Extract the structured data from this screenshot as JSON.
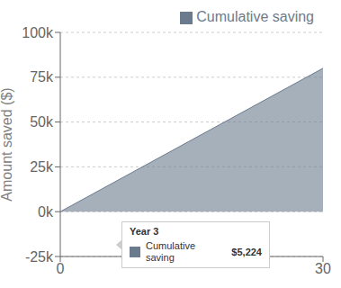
{
  "chart_data": {
    "type": "area",
    "y_label": "Amount saved ($)",
    "x": [
      0,
      30
    ],
    "series": [
      {
        "name": "Cumulative saving",
        "color": "#6b7b8d",
        "values": [
          0,
          80000
        ]
      }
    ],
    "xlim": [
      0,
      30
    ],
    "ylim": [
      -25000,
      100000
    ],
    "xticks": [
      0,
      30
    ],
    "yticks": [
      {
        "value": -25000,
        "label": "-25k"
      },
      {
        "value": 0,
        "label": "0k"
      },
      {
        "value": 25000,
        "label": "25k"
      },
      {
        "value": 50000,
        "label": "50k"
      },
      {
        "value": 75000,
        "label": "75k"
      },
      {
        "value": 100000,
        "label": "100k"
      }
    ],
    "grid": true,
    "legend": "upper right",
    "annotations": [
      "Year 3",
      "Cumulative\nsaving",
      "$5,224"
    ]
  }
}
